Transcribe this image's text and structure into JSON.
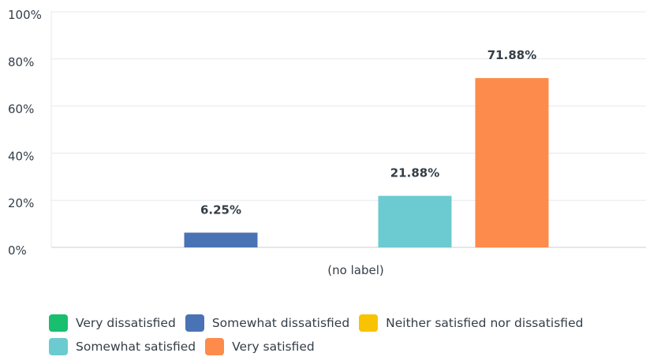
{
  "chart_data": {
    "type": "bar",
    "categories": [
      "(no label)"
    ],
    "ylim": [
      0,
      100
    ],
    "yticks": [
      0,
      20,
      40,
      60,
      80,
      100
    ],
    "ytick_labels": [
      "0%",
      "20%",
      "40%",
      "60%",
      "80%",
      "100%"
    ],
    "grid": true,
    "legend_position": "bottom",
    "series": [
      {
        "name": "Very dissatisfied",
        "values": [
          0
        ],
        "label": "",
        "color": "#17bf6f"
      },
      {
        "name": "Somewhat dissatisfied",
        "values": [
          6.25
        ],
        "label": "6.25%",
        "color": "#4a73b5"
      },
      {
        "name": "Neither satisfied nor dissatisfied",
        "values": [
          0
        ],
        "label": "",
        "color": "#f8c300"
      },
      {
        "name": "Somewhat satisfied",
        "values": [
          21.88
        ],
        "label": "21.88%",
        "color": "#6bcbd0"
      },
      {
        "name": "Very satisfied",
        "values": [
          71.88
        ],
        "label": "71.88%",
        "color": "#fd8b4b"
      }
    ]
  }
}
